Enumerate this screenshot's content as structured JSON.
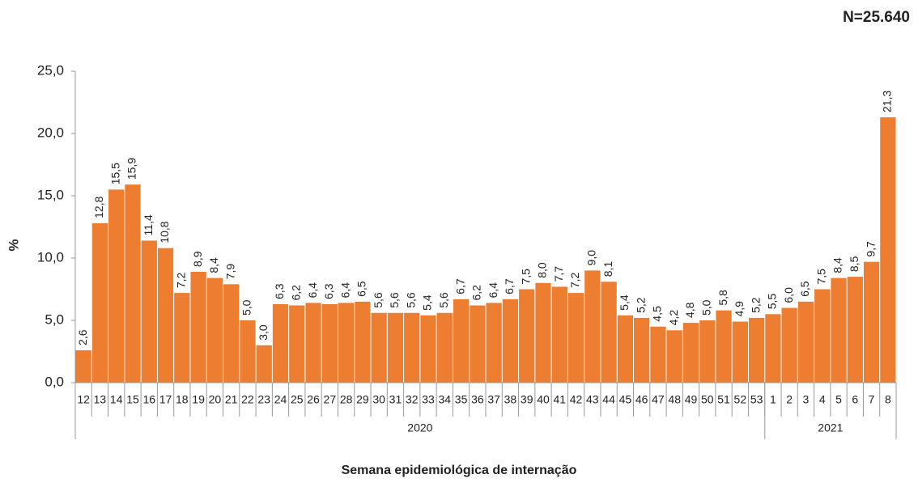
{
  "chart_data": {
    "type": "bar",
    "note_label": "N=25.640",
    "y_label": "%",
    "x_label": "Semana epidemiológica  de internação",
    "color": "#ed7d31",
    "category_groups": [
      {
        "label": "2020",
        "categories": [
          "12",
          "13",
          "14",
          "15",
          "16",
          "17",
          "18",
          "19",
          "20",
          "21",
          "22",
          "23",
          "24",
          "25",
          "26",
          "27",
          "28",
          "29",
          "30",
          "31",
          "32",
          "33",
          "34",
          "35",
          "36",
          "37",
          "38",
          "39",
          "40",
          "41",
          "42",
          "43",
          "44",
          "45",
          "46",
          "47",
          "48",
          "49",
          "50",
          "51",
          "52",
          "53"
        ]
      },
      {
        "label": "2021",
        "categories": [
          "1",
          "2",
          "3",
          "4",
          "5",
          "6",
          "7",
          "8"
        ]
      }
    ],
    "values": [
      2.6,
      12.8,
      15.5,
      15.9,
      11.4,
      10.8,
      7.2,
      8.9,
      8.4,
      7.9,
      5.0,
      3.0,
      6.3,
      6.2,
      6.4,
      6.3,
      6.4,
      6.5,
      5.6,
      5.6,
      5.6,
      5.4,
      5.6,
      6.7,
      6.2,
      6.4,
      6.7,
      7.5,
      8.0,
      7.7,
      7.2,
      9.0,
      8.1,
      5.4,
      5.2,
      4.5,
      4.2,
      4.8,
      5.0,
      5.8,
      4.9,
      5.2,
      5.5,
      6.0,
      6.5,
      7.5,
      8.4,
      8.5,
      9.7,
      21.3
    ],
    "value_labels": [
      "2,6",
      "12,8",
      "15,5",
      "15,9",
      "11,4",
      "10,8",
      "7,2",
      "8,9",
      "8,4",
      "7,9",
      "5,0",
      "3,0",
      "6,3",
      "6,2",
      "6,4",
      "6,3",
      "6,4",
      "6,5",
      "5,6",
      "5,6",
      "5,6",
      "5,4",
      "5,6",
      "6,7",
      "6,2",
      "6,4",
      "6,7",
      "7,5",
      "8,0",
      "7,7",
      "7,2",
      "9,0",
      "8,1",
      "5,4",
      "5,2",
      "4,5",
      "4,2",
      "4,8",
      "5,0",
      "5,8",
      "4,9",
      "5,2",
      "5,5",
      "6,0",
      "6,5",
      "7,5",
      "8,4",
      "8,5",
      "9,7",
      "21,3"
    ],
    "ylim": [
      0,
      25
    ],
    "yticks": [
      {
        "value": 0,
        "label": "0,0"
      },
      {
        "value": 5,
        "label": "5,0"
      },
      {
        "value": 10,
        "label": "10,0"
      },
      {
        "value": 15,
        "label": "15,0"
      },
      {
        "value": 20,
        "label": "20,0"
      },
      {
        "value": 25,
        "label": "25,0"
      }
    ]
  }
}
